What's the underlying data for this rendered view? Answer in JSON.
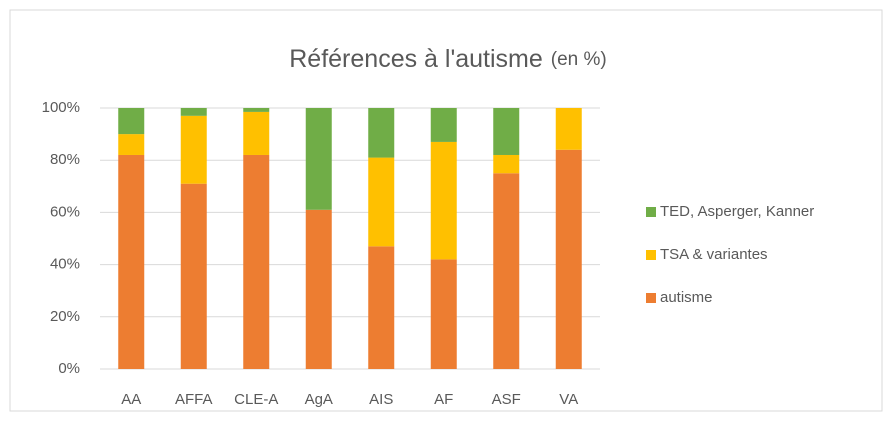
{
  "chart_data": {
    "type": "stacked_bar",
    "title": "Références à l'autisme",
    "subtitle": "(en %)",
    "categories": [
      "AA",
      "AFFA",
      "CLE-A",
      "AgA",
      "AIS",
      "AF",
      "ASF",
      "VA"
    ],
    "series": [
      {
        "name": "autisme",
        "color": "#ed7d31",
        "values": [
          82,
          71,
          82,
          61,
          47,
          42,
          75,
          84
        ]
      },
      {
        "name": "TSA &  variantes",
        "color": "#ffc000",
        "values": [
          8,
          26,
          16.5,
          0,
          34,
          45,
          7,
          16
        ]
      },
      {
        "name": "TED, Asperger, Kanner",
        "color": "#70ad47",
        "values": [
          10,
          3,
          1.5,
          39,
          19,
          13,
          18,
          0
        ]
      }
    ],
    "ylim": [
      0,
      100
    ],
    "yticks": [
      {
        "value": 0,
        "label": "0%"
      },
      {
        "value": 20,
        "label": "20%"
      },
      {
        "value": 40,
        "label": "40%"
      },
      {
        "value": 60,
        "label": "60%"
      },
      {
        "value": 80,
        "label": "80%"
      },
      {
        "value": 100,
        "label": "100%"
      }
    ],
    "grid": true,
    "legend": "right"
  }
}
